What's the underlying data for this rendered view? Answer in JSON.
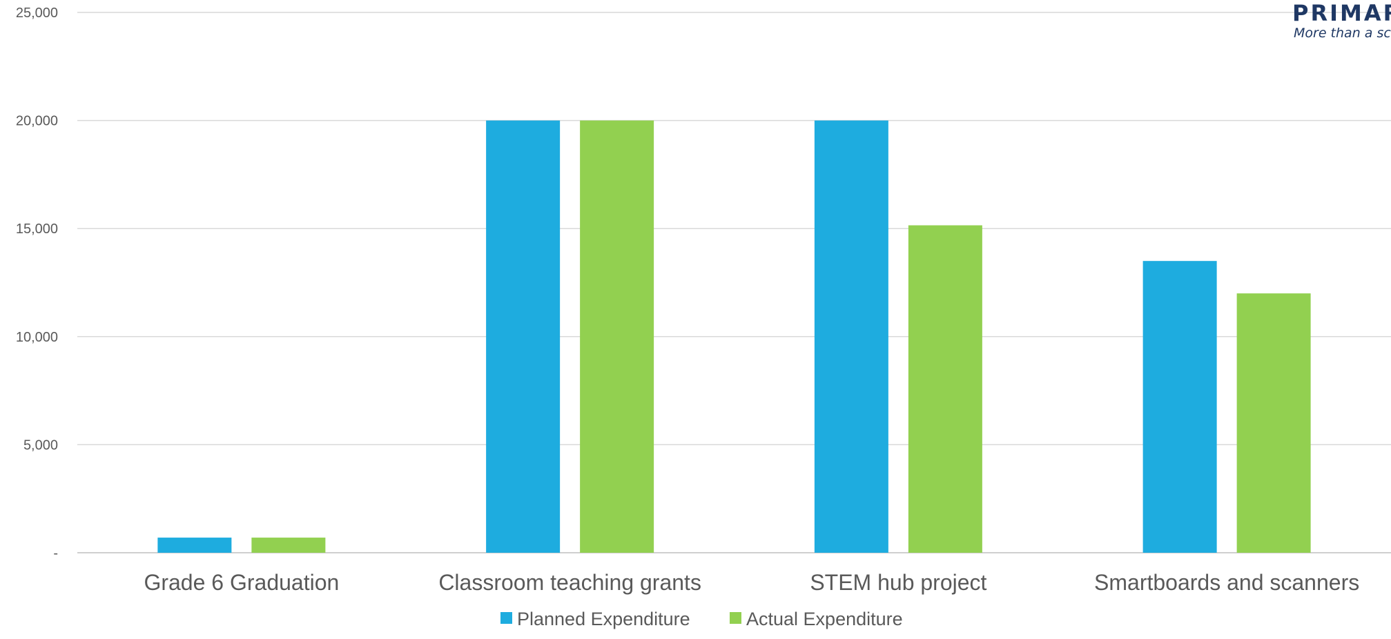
{
  "logo": {
    "name": "PRIMAR",
    "tagline": "More than a sch"
  },
  "chart_data": {
    "type": "bar",
    "categories": [
      "Grade 6 Graduation",
      "Classroom teaching grants",
      "STEM hub project",
      "Smartboards and scanners"
    ],
    "series": [
      {
        "name": "Planned Expenditure",
        "color": "#1eacdf",
        "values": [
          700,
          20000,
          20000,
          13500
        ]
      },
      {
        "name": "Actual Expenditure",
        "color": "#92d050",
        "values": [
          700,
          20000,
          15150,
          12000
        ]
      }
    ],
    "y_ticks": [
      {
        "value": 0,
        "label": "-"
      },
      {
        "value": 5000,
        "label": "5,000"
      },
      {
        "value": 10000,
        "label": "10,000"
      },
      {
        "value": 15000,
        "label": "15,000"
      },
      {
        "value": 20000,
        "label": "20,000"
      },
      {
        "value": 25000,
        "label": "25,000"
      }
    ],
    "ylim": [
      0,
      25000
    ],
    "grid": true,
    "legend_position": "bottom-center"
  }
}
